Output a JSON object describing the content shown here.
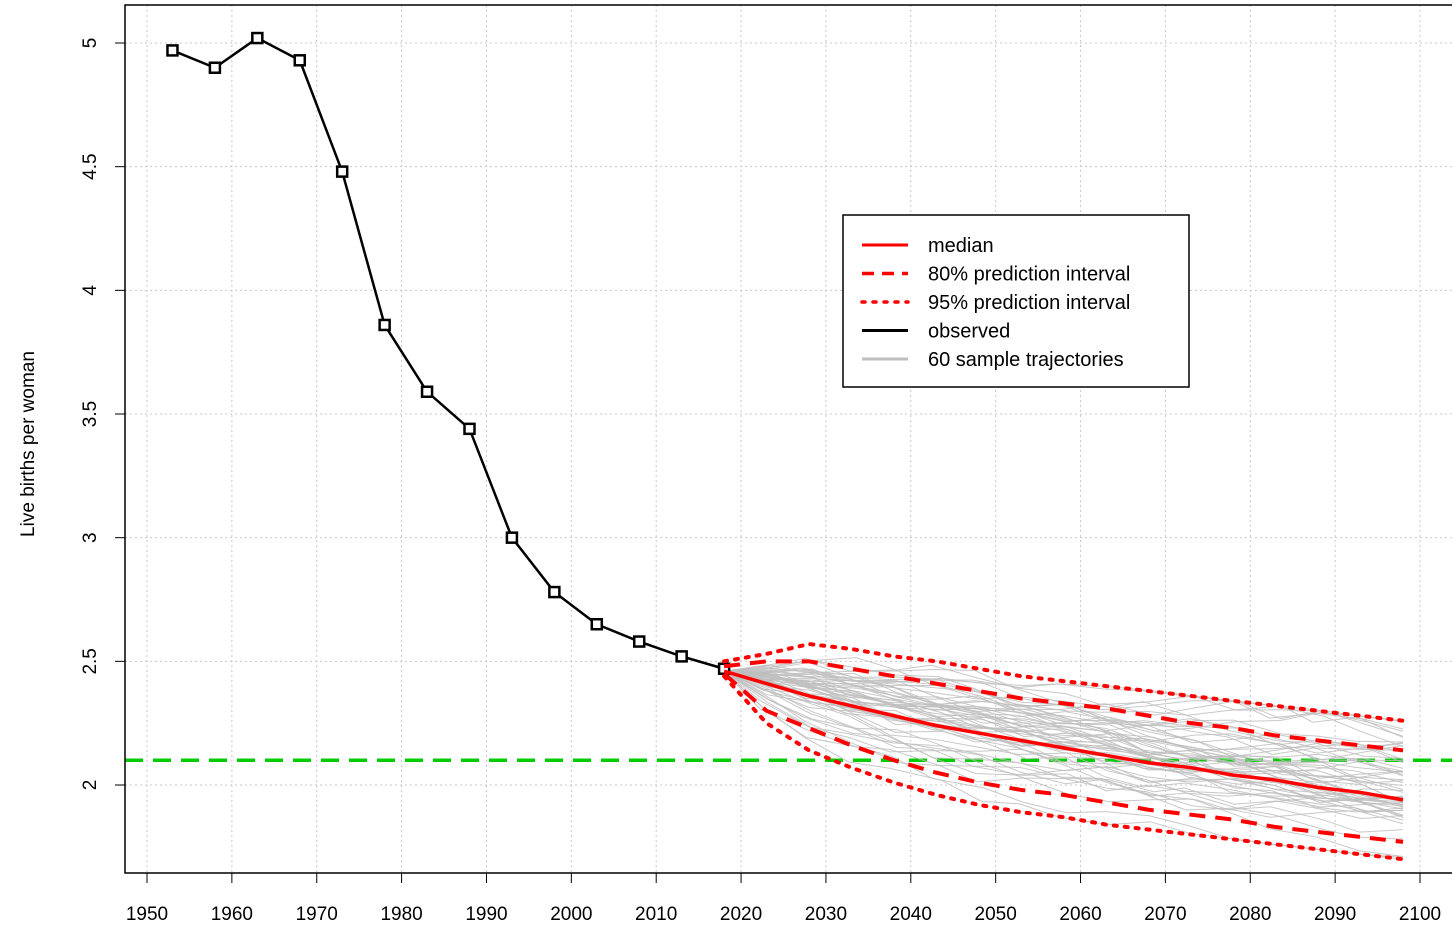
{
  "chart_data": {
    "type": "line",
    "ylabel": "Live births per woman",
    "xlim": [
      1947,
      2100
    ],
    "ylim": [
      1.65,
      5.15
    ],
    "x_ticks": [
      1950,
      1960,
      1970,
      1980,
      1990,
      2000,
      2010,
      2020,
      2030,
      2040,
      2050,
      2060,
      2070,
      2080,
      2090,
      2100
    ],
    "y_ticks": [
      2,
      2.5,
      3,
      3.5,
      4,
      4.5,
      5
    ],
    "y_tick_labels": [
      "2",
      "2.5",
      "3",
      "3.5",
      "4",
      "4.5",
      "5"
    ],
    "grid": true,
    "legend_position": "center",
    "legend": [
      {
        "label": "median",
        "style": "solid",
        "color": "#ff0000"
      },
      {
        "label": "80% prediction interval",
        "style": "dashed",
        "color": "#ff0000"
      },
      {
        "label": "95% prediction interval",
        "style": "dotted",
        "color": "#ff0000"
      },
      {
        "label": "observed",
        "style": "solid",
        "color": "#000000"
      },
      {
        "label": "60 sample trajectories",
        "style": "solid",
        "color": "#bebebe"
      }
    ],
    "reference_line": {
      "y": 2.1,
      "color": "#00cc00",
      "style": "dashed"
    },
    "series": [
      {
        "name": "observed",
        "color": "#000000",
        "x": [
          1953,
          1958,
          1963,
          1968,
          1973,
          1978,
          1983,
          1988,
          1993,
          1998,
          2003,
          2008,
          2013,
          2018
        ],
        "y": [
          4.97,
          4.9,
          5.02,
          4.93,
          4.48,
          3.86,
          3.59,
          3.44,
          3.0,
          2.78,
          2.65,
          2.58,
          2.52,
          2.47
        ]
      },
      {
        "name": "median",
        "color": "#ff0000",
        "x": [
          2018,
          2023,
          2028,
          2033,
          2038,
          2043,
          2048,
          2053,
          2058,
          2063,
          2068,
          2073,
          2078,
          2083,
          2088,
          2093,
          2098
        ],
        "y": [
          2.46,
          2.41,
          2.36,
          2.32,
          2.28,
          2.24,
          2.21,
          2.18,
          2.15,
          2.12,
          2.09,
          2.07,
          2.04,
          2.02,
          1.99,
          1.97,
          1.94
        ]
      },
      {
        "name": "80% prediction interval upper",
        "color": "#ff0000",
        "x": [
          2018,
          2023,
          2028,
          2033,
          2038,
          2043,
          2048,
          2053,
          2058,
          2063,
          2068,
          2073,
          2078,
          2083,
          2088,
          2093,
          2098
        ],
        "y": [
          2.48,
          2.5,
          2.5,
          2.47,
          2.44,
          2.41,
          2.38,
          2.35,
          2.33,
          2.31,
          2.28,
          2.25,
          2.23,
          2.2,
          2.18,
          2.16,
          2.14
        ]
      },
      {
        "name": "80% prediction interval lower",
        "color": "#ff0000",
        "x": [
          2018,
          2023,
          2028,
          2033,
          2038,
          2043,
          2048,
          2053,
          2058,
          2063,
          2068,
          2073,
          2078,
          2083,
          2088,
          2093,
          2098
        ],
        "y": [
          2.45,
          2.3,
          2.23,
          2.16,
          2.1,
          2.05,
          2.01,
          1.98,
          1.96,
          1.93,
          1.9,
          1.88,
          1.86,
          1.83,
          1.81,
          1.79,
          1.77
        ]
      },
      {
        "name": "95% prediction interval upper",
        "color": "#ff0000",
        "x": [
          2018,
          2023,
          2028,
          2033,
          2038,
          2043,
          2048,
          2053,
          2058,
          2063,
          2068,
          2073,
          2078,
          2083,
          2088,
          2093,
          2098
        ],
        "y": [
          2.5,
          2.53,
          2.57,
          2.55,
          2.52,
          2.5,
          2.47,
          2.44,
          2.42,
          2.4,
          2.38,
          2.36,
          2.34,
          2.32,
          2.3,
          2.28,
          2.26
        ]
      },
      {
        "name": "95% prediction interval lower",
        "color": "#ff0000",
        "x": [
          2018,
          2023,
          2028,
          2033,
          2038,
          2043,
          2048,
          2053,
          2058,
          2063,
          2068,
          2073,
          2078,
          2083,
          2088,
          2093,
          2098
        ],
        "y": [
          2.44,
          2.25,
          2.14,
          2.07,
          2.01,
          1.96,
          1.92,
          1.89,
          1.87,
          1.84,
          1.82,
          1.8,
          1.78,
          1.76,
          1.74,
          1.72,
          1.7
        ]
      }
    ],
    "sample_trajectories": {
      "count": 60,
      "color": "#bebebe",
      "x_start": 2018,
      "x_end": 2098,
      "x_step": 5
    }
  }
}
